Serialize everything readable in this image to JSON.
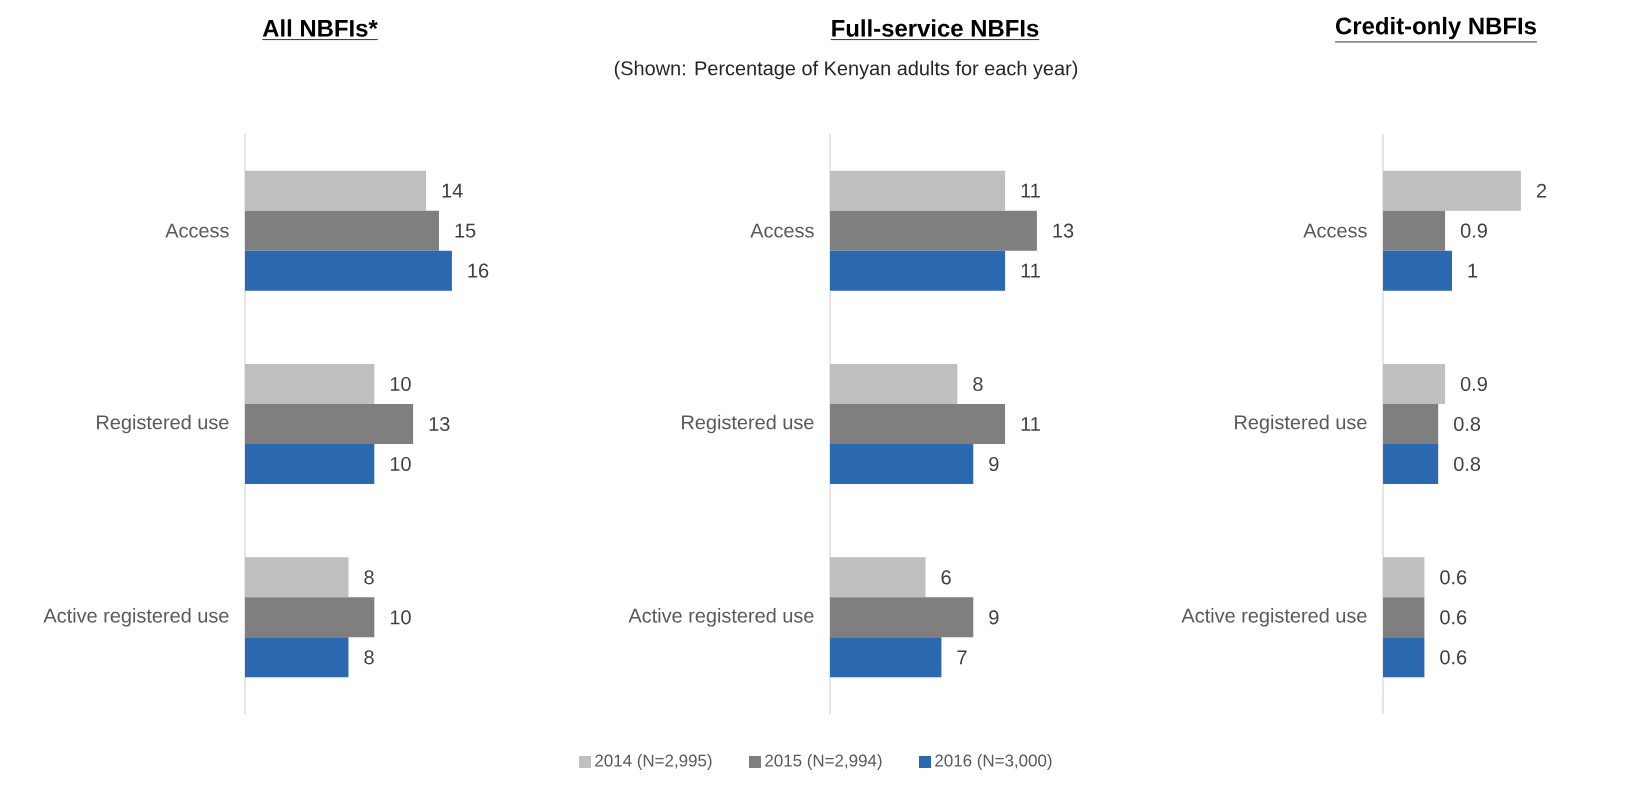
{
  "chart_data": [
    {
      "type": "bar",
      "orientation": "horizontal",
      "title": "All NBFIs*",
      "categories": [
        "Access",
        "Registered use",
        "Active registered use"
      ],
      "data_labels": true,
      "legend": false,
      "series": [
        {
          "color": "#bfbfbf",
          "values": [
            14,
            10,
            8
          ]
        },
        {
          "color": "#7f7f7f",
          "values": [
            15,
            13,
            10
          ]
        },
        {
          "color": "#2a69b0",
          "values": [
            16,
            10,
            8
          ]
        }
      ]
    },
    {
      "type": "bar",
      "orientation": "horizontal",
      "title": "Full-service NBFIs",
      "subtitle": "(Shown: Percentage of Kenyan adults for each year)",
      "categories": [
        "Access",
        "Registered use",
        "Active registered use"
      ],
      "data_labels": true,
      "legend": "bottom",
      "series": [
        {
          "name": "2014 (N=2,995)",
          "color": "#bfbfbf",
          "values": [
            11,
            8,
            6
          ]
        },
        {
          "name": "2015 (N=2,994)",
          "color": "#7f7f7f",
          "values": [
            13,
            11,
            9
          ]
        },
        {
          "name": "2016 (N=3,000)",
          "color": "#2a69b0",
          "values": [
            11,
            9,
            7
          ]
        }
      ]
    },
    {
      "type": "bar",
      "orientation": "horizontal",
      "title": "Credit-only NBFIs",
      "categories": [
        "Access",
        "Registered use",
        "Active registered use"
      ],
      "data_labels": true,
      "legend": false,
      "series": [
        {
          "color": "#bfbfbf",
          "values": [
            2,
            0.9,
            0.6
          ]
        },
        {
          "color": "#7f7f7f",
          "values": [
            0.9,
            0.8,
            0.6
          ]
        },
        {
          "color": "#2a69b0",
          "values": [
            1,
            0.8,
            0.6
          ]
        }
      ]
    }
  ]
}
